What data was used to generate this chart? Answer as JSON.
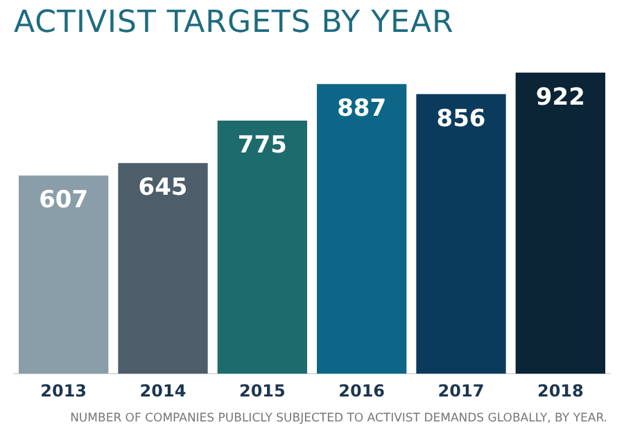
{
  "chart_data": {
    "type": "bar",
    "title": "ACTIVIST TARGETS BY YEAR",
    "categories": [
      "2013",
      "2014",
      "2015",
      "2016",
      "2017",
      "2018"
    ],
    "values": [
      607,
      645,
      775,
      887,
      856,
      922
    ],
    "colors": [
      "#8a9ea9",
      "#4d5e6a",
      "#1e6b6e",
      "#0d6687",
      "#0b3b5c",
      "#0b2436"
    ],
    "data_labels": true,
    "grid": false,
    "legend": false,
    "annotations": [
      "NUMBER OF COMPANIES PUBLICLY SUBJECTED TO ACTIVIST DEMANDS GLOBALLY, BY YEAR."
    ]
  }
}
